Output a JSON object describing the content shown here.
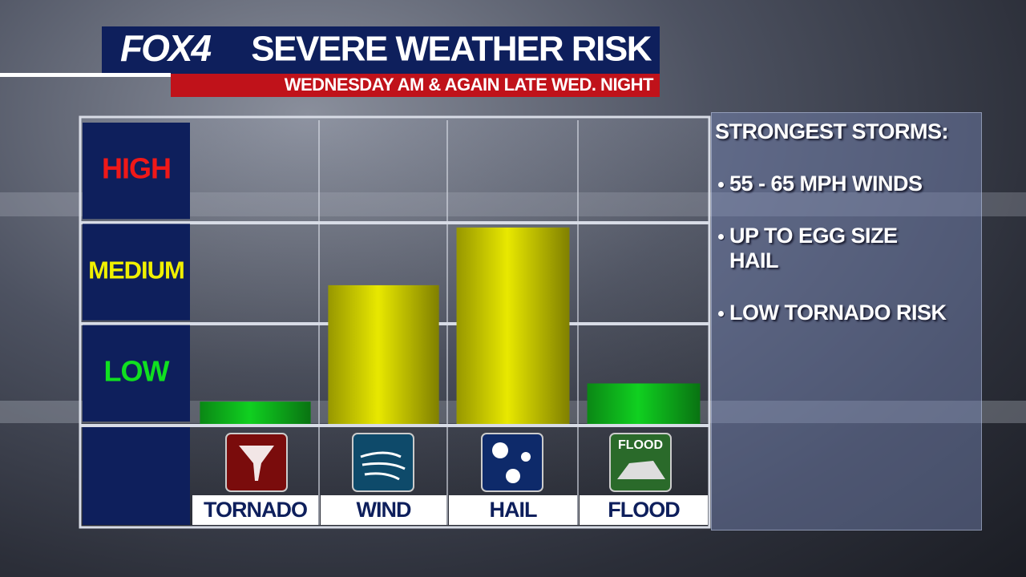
{
  "logo": "FOX4",
  "flood_icon_text": "FLOOD",
  "side_panel": {
    "heading": "STRONGEST STORMS:",
    "items": [
      "55 - 65 MPH WINDS",
      "UP TO EGG SIZE HAIL",
      "LOW TORNADO RISK"
    ]
  },
  "chart_data": {
    "type": "bar",
    "title": "SEVERE WEATHER RISK",
    "subtitle": "WEDNESDAY AM & AGAIN LATE WED. NIGHT",
    "categories": [
      "TORNADO",
      "WIND",
      "HAIL",
      "FLOOD"
    ],
    "values": [
      0.22,
      1.37,
      1.94,
      0.4
    ],
    "colors": [
      "#10d020",
      "#e8e800",
      "#e8e800",
      "#10d020"
    ],
    "ylim": [
      0,
      3
    ],
    "yticks": [
      {
        "value": 0.5,
        "label": "LOW"
      },
      {
        "value": 1.5,
        "label": "MEDIUM"
      },
      {
        "value": 2.5,
        "label": "HIGH"
      }
    ],
    "ytick_colors": [
      "#10e020",
      "#f0f000",
      "#f01818"
    ]
  }
}
